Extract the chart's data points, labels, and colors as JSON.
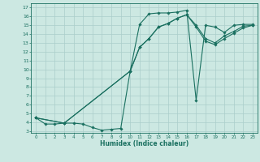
{
  "xlabel": "Humidex (Indice chaleur)",
  "bg_color": "#cce8e2",
  "grid_color": "#aaceca",
  "line_color": "#1a7060",
  "xlim": [
    -0.5,
    23.5
  ],
  "ylim": [
    2.8,
    17.5
  ],
  "xticks": [
    0,
    1,
    2,
    3,
    4,
    5,
    6,
    7,
    8,
    9,
    10,
    11,
    12,
    13,
    14,
    15,
    16,
    17,
    18,
    19,
    20,
    21,
    22,
    23
  ],
  "yticks": [
    3,
    4,
    5,
    6,
    7,
    8,
    9,
    10,
    11,
    12,
    13,
    14,
    15,
    16,
    17
  ],
  "curve1_x": [
    0,
    1,
    2,
    3,
    4,
    5,
    6,
    7,
    8,
    9,
    10,
    11,
    12,
    13,
    14,
    15,
    16,
    17,
    18,
    19,
    20,
    21,
    22,
    23
  ],
  "curve1_y": [
    4.5,
    3.8,
    3.8,
    3.9,
    3.9,
    3.8,
    3.4,
    3.1,
    3.2,
    3.3,
    9.8,
    15.1,
    16.3,
    16.4,
    16.4,
    16.5,
    16.7,
    6.5,
    15.0,
    14.8,
    14.2,
    15.0,
    15.1,
    15.1
  ],
  "curve2_x": [
    0,
    3,
    10,
    11,
    12,
    13,
    14,
    15,
    16,
    17,
    18,
    19,
    20,
    21,
    22,
    23
  ],
  "curve2_y": [
    4.5,
    3.9,
    9.8,
    12.5,
    13.5,
    14.8,
    15.2,
    15.8,
    16.2,
    15.0,
    13.5,
    13.0,
    13.8,
    14.3,
    14.9,
    15.0
  ],
  "curve3_x": [
    0,
    3,
    10,
    11,
    12,
    13,
    14,
    15,
    16,
    17,
    18,
    19,
    20,
    21,
    22,
    23
  ],
  "curve3_y": [
    4.5,
    3.9,
    9.8,
    12.5,
    13.5,
    14.8,
    15.2,
    15.8,
    16.2,
    14.8,
    13.2,
    12.8,
    13.5,
    14.1,
    14.7,
    15.0
  ]
}
